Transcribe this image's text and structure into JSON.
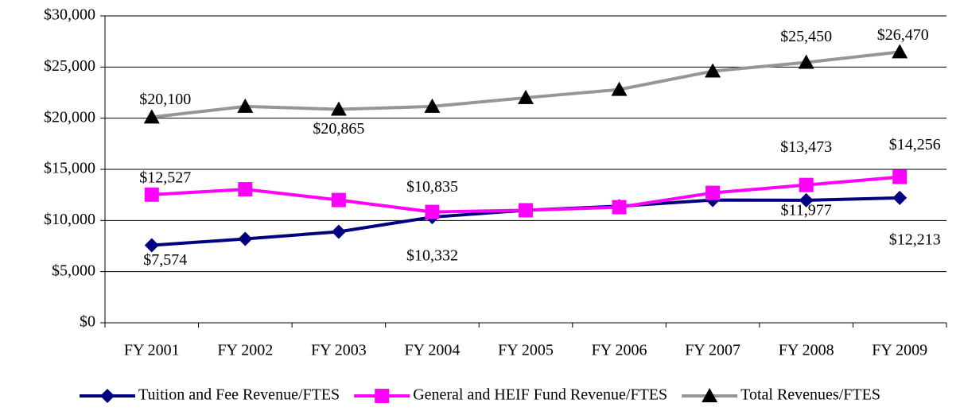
{
  "chart_data": {
    "type": "line",
    "categories": [
      "FY 2001",
      "FY 2002",
      "FY 2003",
      "FY 2004",
      "FY 2005",
      "FY 2006",
      "FY 2007",
      "FY 2008",
      "FY 2009"
    ],
    "series": [
      {
        "name": "Tuition and Fee Revenue/FTES",
        "color": "#000080",
        "marker": "diamond",
        "values": [
          7574,
          8200,
          8900,
          10332,
          11000,
          11400,
          12000,
          11977,
          12213
        ],
        "value_labels": [
          "$7,574",
          null,
          null,
          "$10,332",
          null,
          null,
          null,
          "$11,977",
          "$12,213"
        ]
      },
      {
        "name": "General and HEIF Fund Revenue/FTES",
        "color": "#ff00ff",
        "marker": "square",
        "values": [
          12527,
          13050,
          12000,
          10835,
          11000,
          11300,
          12700,
          13473,
          14256
        ],
        "value_labels": [
          "$12,527",
          null,
          null,
          "$10,835",
          null,
          null,
          null,
          "$13,473",
          "$14,256"
        ]
      },
      {
        "name": "Total Revenues/FTES",
        "color": "#969696",
        "marker_color": "#000000",
        "marker": "triangle",
        "values": [
          20100,
          21150,
          20865,
          21150,
          22000,
          22800,
          24600,
          25450,
          26470
        ],
        "value_labels": [
          "$20,100",
          null,
          "$20,865",
          null,
          null,
          null,
          null,
          "$25,450",
          "$26,470"
        ]
      }
    ],
    "ylim": [
      0,
      30000
    ],
    "yticks": [
      {
        "value": 0,
        "label": "$0"
      },
      {
        "value": 5000,
        "label": "$5,000"
      },
      {
        "value": 10000,
        "label": "$10,000"
      },
      {
        "value": 15000,
        "label": "$15,000"
      },
      {
        "value": 20000,
        "label": "$20,000"
      },
      {
        "value": 25000,
        "label": "$25,000"
      },
      {
        "value": 30000,
        "label": "$30,000"
      }
    ],
    "grid": true,
    "legend": "bottom"
  }
}
